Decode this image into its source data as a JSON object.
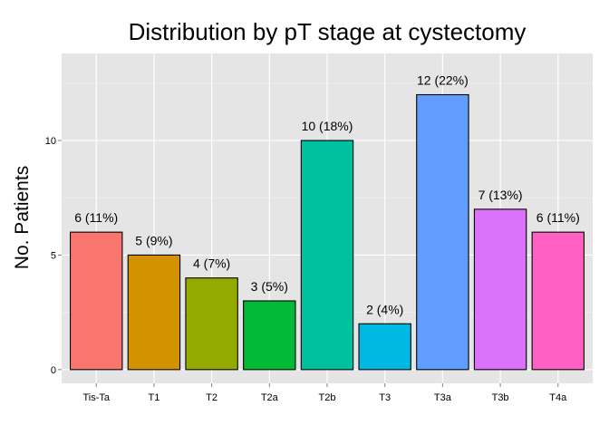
{
  "chart_data": {
    "type": "bar",
    "title": "Distribution by pT stage at cystectomy",
    "xlabel": "",
    "ylabel": "No. Patients",
    "categories": [
      "Tis-Ta",
      "T1",
      "T2",
      "T2a",
      "T2b",
      "T3",
      "T3a",
      "T3b",
      "T4a"
    ],
    "values": [
      6,
      5,
      4,
      3,
      10,
      2,
      12,
      7,
      6
    ],
    "data_labels": [
      "6 (11%)",
      "5 (9%)",
      "4 (7%)",
      "3 (5%)",
      "10 (18%)",
      "2 (4%)",
      "12 (22%)",
      "7 (13%)",
      "6 (11%)"
    ],
    "colors": [
      "#F8766D",
      "#D39200",
      "#93AA00",
      "#00BA38",
      "#00C19F",
      "#00B9E3",
      "#619CFF",
      "#DB72FB",
      "#FF61C3"
    ],
    "yticks": [
      0,
      5,
      10
    ],
    "ylim": [
      -0.6,
      13.8
    ],
    "grid": true,
    "legend": "none"
  }
}
